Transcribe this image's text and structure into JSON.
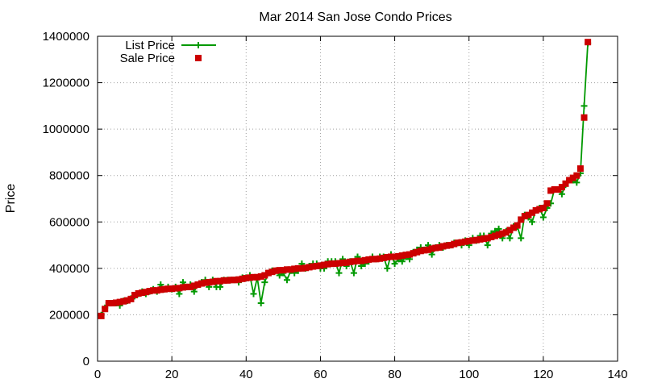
{
  "chart_data": {
    "type": "line",
    "title": "Mar 2014 San Jose Condo Prices",
    "xlabel": "",
    "ylabel": "Price",
    "xlim": [
      0,
      140
    ],
    "ylim": [
      0,
      1400000
    ],
    "x_ticks": [
      0,
      20,
      40,
      60,
      80,
      100,
      120,
      140
    ],
    "y_ticks": [
      0,
      200000,
      400000,
      600000,
      800000,
      1000000,
      1200000,
      1400000
    ],
    "x_tick_labels": [
      "0",
      "20",
      "40",
      "60",
      "80",
      "100",
      "120",
      "140"
    ],
    "y_tick_labels": [
      "0",
      "200000",
      "400000",
      "600000",
      "800000",
      "1000000",
      "1200000",
      "1400000"
    ],
    "grid": true,
    "legend_position": "top-left",
    "colors": {
      "list": "#009900",
      "sale": "#cc0000"
    },
    "series": [
      {
        "name": "List Price",
        "style": "linespoints",
        "marker": "plus",
        "x": [
          1,
          2,
          3,
          4,
          5,
          6,
          7,
          8,
          9,
          10,
          11,
          12,
          13,
          14,
          15,
          16,
          17,
          18,
          19,
          20,
          21,
          22,
          23,
          24,
          25,
          26,
          27,
          28,
          29,
          30,
          31,
          32,
          33,
          34,
          35,
          36,
          37,
          38,
          39,
          40,
          41,
          42,
          43,
          44,
          45,
          46,
          47,
          48,
          49,
          50,
          51,
          52,
          53,
          54,
          55,
          56,
          57,
          58,
          59,
          60,
          61,
          62,
          63,
          64,
          65,
          66,
          67,
          68,
          69,
          70,
          71,
          72,
          73,
          74,
          75,
          76,
          77,
          78,
          79,
          80,
          81,
          82,
          83,
          84,
          85,
          86,
          87,
          88,
          89,
          90,
          91,
          92,
          93,
          94,
          95,
          96,
          97,
          98,
          99,
          100,
          101,
          102,
          103,
          104,
          105,
          106,
          107,
          108,
          109,
          110,
          111,
          112,
          113,
          114,
          115,
          116,
          117,
          118,
          119,
          120,
          121,
          122,
          123,
          124,
          125,
          126,
          127,
          128,
          129,
          130,
          131,
          132
        ],
        "values": [
          199000,
          230000,
          250000,
          250000,
          250000,
          240000,
          260000,
          260000,
          270000,
          280000,
          290000,
          300000,
          290000,
          300000,
          310000,
          300000,
          330000,
          310000,
          320000,
          310000,
          320000,
          290000,
          340000,
          320000,
          330000,
          300000,
          330000,
          340000,
          350000,
          320000,
          350000,
          320000,
          320000,
          350000,
          350000,
          350000,
          350000,
          340000,
          360000,
          360000,
          370000,
          290000,
          360000,
          250000,
          340000,
          380000,
          390000,
          390000,
          370000,
          380000,
          350000,
          390000,
          380000,
          390000,
          420000,
          400000,
          410000,
          420000,
          420000,
          400000,
          400000,
          430000,
          430000,
          430000,
          380000,
          440000,
          410000,
          430000,
          380000,
          450000,
          410000,
          420000,
          430000,
          450000,
          440000,
          450000,
          450000,
          400000,
          460000,
          420000,
          440000,
          430000,
          450000,
          440000,
          470000,
          480000,
          490000,
          480000,
          500000,
          460000,
          490000,
          500000,
          490000,
          500000,
          500000,
          510000,
          510000,
          500000,
          520000,
          500000,
          530000,
          520000,
          540000,
          540000,
          500000,
          550000,
          560000,
          570000,
          530000,
          560000,
          530000,
          580000,
          580000,
          530000,
          630000,
          620000,
          600000,
          650000,
          660000,
          620000,
          660000,
          680000,
          740000,
          740000,
          720000,
          760000,
          780000,
          780000,
          770000,
          810000,
          1100000,
          1370000
        ]
      },
      {
        "name": "Sale Price",
        "style": "points",
        "marker": "square",
        "x": [
          1,
          2,
          3,
          4,
          5,
          6,
          7,
          8,
          9,
          10,
          11,
          12,
          13,
          14,
          15,
          16,
          17,
          18,
          19,
          20,
          21,
          22,
          23,
          24,
          25,
          26,
          27,
          28,
          29,
          30,
          31,
          32,
          33,
          34,
          35,
          36,
          37,
          38,
          39,
          40,
          41,
          42,
          43,
          44,
          45,
          46,
          47,
          48,
          49,
          50,
          51,
          52,
          53,
          54,
          55,
          56,
          57,
          58,
          59,
          60,
          61,
          62,
          63,
          64,
          65,
          66,
          67,
          68,
          69,
          70,
          71,
          72,
          73,
          74,
          75,
          76,
          77,
          78,
          79,
          80,
          81,
          82,
          83,
          84,
          85,
          86,
          87,
          88,
          89,
          90,
          91,
          92,
          93,
          94,
          95,
          96,
          97,
          98,
          99,
          100,
          101,
          102,
          103,
          104,
          105,
          106,
          107,
          108,
          109,
          110,
          111,
          112,
          113,
          114,
          115,
          116,
          117,
          118,
          119,
          120,
          121,
          122,
          123,
          124,
          125,
          126,
          127,
          128,
          129,
          130,
          131,
          132
        ],
        "values": [
          195000,
          225000,
          250000,
          250000,
          252000,
          255000,
          258000,
          262000,
          268000,
          285000,
          292000,
          295000,
          298000,
          302000,
          305000,
          305000,
          308000,
          310000,
          312000,
          312000,
          314000,
          315000,
          318000,
          320000,
          320000,
          325000,
          330000,
          335000,
          338000,
          340000,
          342000,
          345000,
          345000,
          348000,
          348000,
          350000,
          350000,
          352000,
          355000,
          358000,
          360000,
          362000,
          362000,
          365000,
          370000,
          380000,
          385000,
          390000,
          392000,
          392000,
          395000,
          395000,
          398000,
          400000,
          400000,
          402000,
          405000,
          408000,
          410000,
          412000,
          415000,
          418000,
          420000,
          420000,
          422000,
          424000,
          425000,
          428000,
          430000,
          432000,
          432000,
          435000,
          438000,
          440000,
          440000,
          442000,
          445000,
          448000,
          450000,
          450000,
          452000,
          455000,
          458000,
          460000,
          465000,
          470000,
          475000,
          478000,
          480000,
          485000,
          488000,
          490000,
          495000,
          498000,
          500000,
          505000,
          510000,
          512000,
          515000,
          518000,
          520000,
          522000,
          525000,
          528000,
          530000,
          535000,
          540000,
          545000,
          550000,
          555000,
          565000,
          575000,
          585000,
          610000,
          625000,
          630000,
          640000,
          650000,
          655000,
          660000,
          680000,
          735000,
          740000,
          740000,
          750000,
          765000,
          780000,
          790000,
          800000,
          830000,
          1050000,
          1375000
        ]
      }
    ]
  }
}
